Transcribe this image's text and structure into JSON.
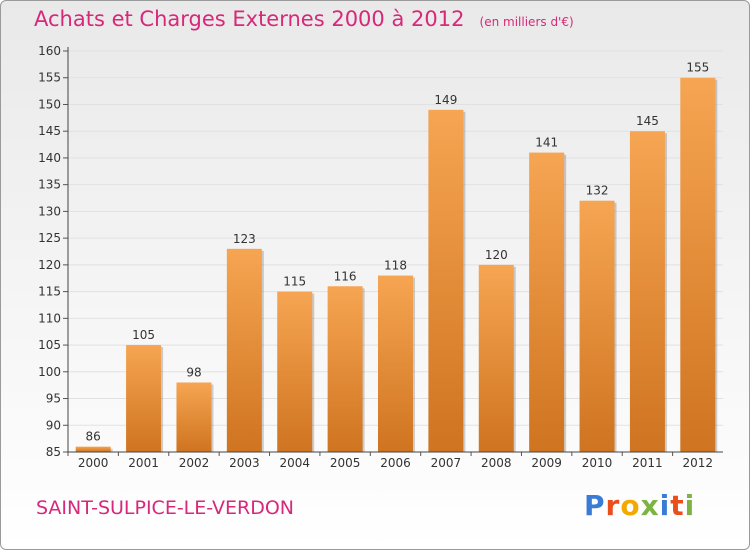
{
  "header": {
    "title": "Achats et Charges Externes 2000 à 2012",
    "unit_note": "(en milliers d'€)"
  },
  "footer": {
    "commune": "SAINT-SULPICE-LE-VERDON",
    "brand_letters": [
      "P",
      "r",
      "o",
      "x",
      "i",
      "t",
      "i"
    ],
    "brand_colors": [
      "#3a7bd5",
      "#e94e1b",
      "#f2a900",
      "#7cb342",
      "#3a7bd5",
      "#e94e1b",
      "#7cb342"
    ]
  },
  "colors": {
    "title": "#d7287a",
    "bar_top": "#f6a552",
    "bar_bottom": "#cf7420",
    "grid": "#e1e1e1"
  },
  "chart_data": {
    "type": "bar",
    "title": "Achats et Charges Externes 2000 à 2012",
    "subtitle": "(en milliers d'€)",
    "xlabel": "",
    "ylabel": "",
    "categories": [
      "2000",
      "2001",
      "2002",
      "2003",
      "2004",
      "2005",
      "2006",
      "2007",
      "2008",
      "2009",
      "2010",
      "2011",
      "2012"
    ],
    "values": [
      86,
      105,
      98,
      123,
      115,
      116,
      118,
      149,
      120,
      141,
      132,
      145,
      155
    ],
    "ylim": [
      85,
      160
    ],
    "yticks": [
      85,
      90,
      95,
      100,
      105,
      110,
      115,
      120,
      125,
      130,
      135,
      140,
      145,
      150,
      155,
      160
    ],
    "grid": true,
    "legend": "none"
  }
}
